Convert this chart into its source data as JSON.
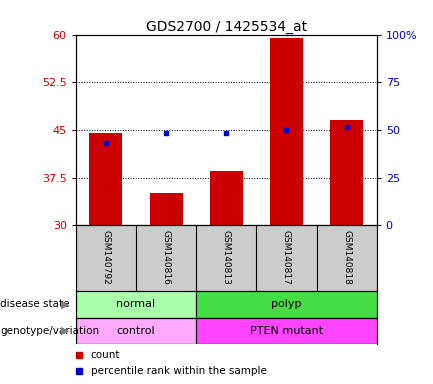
{
  "title": "GDS2700 / 1425534_at",
  "samples": [
    "GSM140792",
    "GSM140816",
    "GSM140813",
    "GSM140817",
    "GSM140818"
  ],
  "bar_values": [
    44.5,
    35.0,
    38.5,
    59.5,
    46.5
  ],
  "blue_values": [
    43.0,
    44.5,
    44.5,
    45.0,
    45.5
  ],
  "ymin": 30,
  "ymax": 60,
  "yticks_left": [
    30,
    37.5,
    45,
    52.5,
    60
  ],
  "yticks_right_pct": [
    0,
    25,
    50,
    75,
    100
  ],
  "bar_color": "#cc0000",
  "blue_color": "#0000cc",
  "disease_state": {
    "groups": [
      {
        "label": "normal",
        "span": [
          0,
          2
        ],
        "color": "#aaffaa"
      },
      {
        "label": "polyp",
        "span": [
          2,
          5
        ],
        "color": "#44dd44"
      }
    ]
  },
  "genotype": {
    "groups": [
      {
        "label": "control",
        "span": [
          0,
          2
        ],
        "color": "#ffaaff"
      },
      {
        "label": "PTEN mutant",
        "span": [
          2,
          5
        ],
        "color": "#ff44ff"
      }
    ]
  },
  "disease_label": "disease state",
  "genotype_label": "genotype/variation",
  "legend_count": "count",
  "legend_pct": "percentile rank within the sample",
  "tick_color_left": "#cc0000",
  "tick_color_right": "#0000cc",
  "xtick_bg": "#cccccc"
}
